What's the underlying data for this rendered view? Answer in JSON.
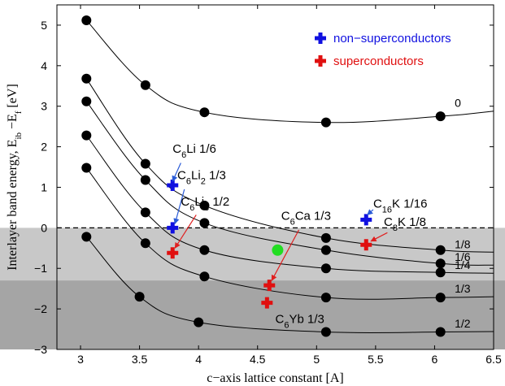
{
  "chart_data": {
    "type": "scatter",
    "xlabel": "c−axis lattice constant [A]",
    "ylabel": "Interlayer band energy, E",
    "ylabel_sub1": "ib",
    "ylabel_mid": " −E",
    "ylabel_sub2": "f",
    "ylabel_unit": " [eV]",
    "xlim": [
      2.8,
      6.5
    ],
    "ylim": [
      -3,
      5.5
    ],
    "xticks": [
      "3",
      "3.5",
      "4",
      "4.5",
      "5",
      "5.5",
      "6",
      "6.5"
    ],
    "yticks": [
      "5",
      "4",
      "3",
      "2",
      "1",
      "0",
      "−1",
      "−2",
      "−3"
    ],
    "shading": [
      {
        "y_top": 0,
        "y_bottom": -3,
        "color": "#c8c8c8"
      },
      {
        "y_top": -1.3,
        "y_bottom": -3,
        "color": "#a5a5a5"
      }
    ],
    "fermi_line_y": 0,
    "curves": [
      {
        "label": "0",
        "x": [
          3.05,
          3.55,
          4.05,
          5.08,
          6.05
        ],
        "y": [
          5.12,
          3.52,
          2.85,
          2.6,
          2.75
        ],
        "end_y": 2.88
      },
      {
        "label": "1/8",
        "x": [
          3.05,
          3.55,
          4.05,
          5.08,
          6.05
        ],
        "y": [
          3.68,
          1.58,
          0.55,
          -0.25,
          -0.55
        ],
        "end_y": -0.6
      },
      {
        "label": "1/6",
        "x": [
          3.05,
          3.55,
          4.05,
          5.08,
          6.05
        ],
        "y": [
          3.12,
          1.18,
          0.12,
          -0.55,
          -0.88
        ],
        "end_y": -0.92
      },
      {
        "label": "1/4",
        "x": [
          3.05,
          3.55,
          4.05,
          5.08,
          6.05
        ],
        "y": [
          2.28,
          0.38,
          -0.55,
          -1.0,
          -1.1
        ],
        "end_y": -1.12
      },
      {
        "label": "1/3",
        "x": [
          3.05,
          3.55,
          4.05,
          5.08,
          6.05
        ],
        "y": [
          1.48,
          -0.38,
          -1.2,
          -1.72,
          -1.72
        ],
        "end_y": -1.7
      },
      {
        "label": "1/2",
        "x": [
          3.05,
          3.5,
          4.0,
          5.08,
          6.05
        ],
        "y": [
          -0.22,
          -1.7,
          -2.33,
          -2.57,
          -2.57
        ],
        "end_y": -2.56
      }
    ],
    "dots": [
      [
        3.05,
        5.12
      ],
      [
        3.55,
        3.52
      ],
      [
        4.05,
        2.85
      ],
      [
        5.08,
        2.6
      ],
      [
        6.05,
        2.75
      ],
      [
        3.05,
        3.68
      ],
      [
        3.55,
        1.58
      ],
      [
        4.05,
        0.55
      ],
      [
        5.08,
        -0.25
      ],
      [
        6.05,
        -0.55
      ],
      [
        3.05,
        3.12
      ],
      [
        3.55,
        1.18
      ],
      [
        4.05,
        0.12
      ],
      [
        5.08,
        -0.55
      ],
      [
        6.05,
        -0.88
      ],
      [
        3.05,
        2.28
      ],
      [
        3.55,
        0.38
      ],
      [
        4.05,
        -0.55
      ],
      [
        5.08,
        -1.0
      ],
      [
        6.05,
        -1.1
      ],
      [
        3.05,
        1.48
      ],
      [
        3.55,
        -0.38
      ],
      [
        4.05,
        -1.2
      ],
      [
        5.08,
        -1.72
      ],
      [
        6.05,
        -1.72
      ],
      [
        3.05,
        -0.22
      ],
      [
        3.5,
        -1.7
      ],
      [
        4.0,
        -2.33
      ],
      [
        5.08,
        -2.57
      ],
      [
        6.05,
        -2.57
      ]
    ],
    "green_dot": [
      4.67,
      -0.55
    ],
    "series": [
      {
        "name": "non−superconductors",
        "color": "#1010e0",
        "points": [
          [
            3.78,
            1.05
          ],
          [
            3.78,
            0.0
          ],
          [
            5.42,
            0.2
          ]
        ]
      },
      {
        "name": "superconductors",
        "color": "#e01010",
        "points": [
          [
            3.78,
            -0.62
          ],
          [
            4.6,
            -1.42
          ],
          [
            4.58,
            -1.85
          ],
          [
            5.42,
            -0.42
          ]
        ]
      }
    ],
    "annotations": [
      {
        "parts": [
          {
            "t": "C",
            "s": 0
          },
          {
            "t": "6",
            "s": 1
          },
          {
            "t": "Li  1/6",
            "s": 0
          }
        ],
        "x": 3.78,
        "y": 1.85,
        "arrow_from": [
          3.85,
          1.6
        ],
        "arrow_to": [
          3.78,
          1.15
        ],
        "arrow_color": "#2a5bd7"
      },
      {
        "parts": [
          {
            "t": "C",
            "s": 0
          },
          {
            "t": "6",
            "s": 1
          },
          {
            "t": "Li",
            "s": 0
          },
          {
            "t": "2",
            "s": 1
          },
          {
            "t": " 1/3",
            "s": 0
          }
        ],
        "x": 3.82,
        "y": 1.2,
        "arrow_from": [
          3.88,
          0.95
        ],
        "arrow_to": [
          3.8,
          0.1
        ],
        "arrow_color": "#2a5bd7"
      },
      {
        "parts": [
          {
            "t": "C",
            "s": 0
          },
          {
            "t": "6",
            "s": 1
          },
          {
            "t": "Li",
            "s": 0
          },
          {
            "t": "3",
            "s": 1
          },
          {
            "t": " 1/2",
            "s": 0
          }
        ],
        "x": 3.85,
        "y": 0.55,
        "arrow_from": [
          3.98,
          0.32
        ],
        "arrow_to": [
          3.8,
          -0.5
        ],
        "arrow_color": "#e02020"
      },
      {
        "parts": [
          {
            "t": "C",
            "s": 0
          },
          {
            "t": "6",
            "s": 1
          },
          {
            "t": "Ca 1/3",
            "s": 0
          }
        ],
        "x": 4.7,
        "y": 0.2,
        "arrow_from": [
          4.85,
          -0.05
        ],
        "arrow_to": [
          4.62,
          -1.3
        ],
        "arrow_color": "#e02020"
      },
      {
        "parts": [
          {
            "t": "C",
            "s": 0
          },
          {
            "t": "16",
            "s": 1
          },
          {
            "t": "K 1/16",
            "s": 0
          }
        ],
        "x": 5.48,
        "y": 0.5,
        "arrow_from": [
          5.48,
          0.45
        ],
        "arrow_to": [
          5.43,
          0.32
        ],
        "arrow_color": "#2a5bd7"
      },
      {
        "parts": [
          {
            "t": "C",
            "s": 0
          },
          {
            "t": "8",
            "s": 1
          },
          {
            "t": "K 1/8",
            "s": 0
          }
        ],
        "x": 5.57,
        "y": 0.05,
        "arrow_from": [
          5.6,
          -0.12
        ],
        "arrow_to": [
          5.46,
          -0.33
        ],
        "arrow_color": "#e02020"
      },
      {
        "parts": [
          {
            "t": "C",
            "s": 0
          },
          {
            "t": "6",
            "s": 1
          },
          {
            "t": "Yb 1/3",
            "s": 0
          }
        ],
        "x": 4.65,
        "y": -2.35,
        "arrow_from": null,
        "arrow_to": null,
        "arrow_color": null
      }
    ],
    "legend": {
      "placement": "top-right"
    },
    "grid": false
  }
}
